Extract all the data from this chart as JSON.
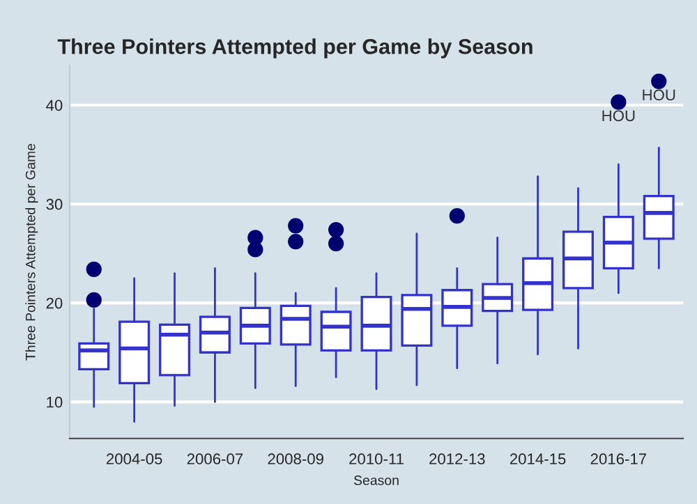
{
  "chart_data": {
    "type": "box",
    "title": "Three Pointers Attempted per Game by Season",
    "xlabel": "Season",
    "ylabel": "Three Pointers Attempted per Game",
    "categories": [
      null,
      "2004-05",
      null,
      "2006-07",
      null,
      "2008-09",
      null,
      "2010-11",
      null,
      "2012-13",
      null,
      "2014-15",
      null,
      "2016-17",
      null
    ],
    "color": "#3333cc",
    "boxes": [
      {
        "low": 9.5,
        "q1": 13.3,
        "median": 15.2,
        "q3": 15.9,
        "high": 19.4,
        "outliers": [
          20.3,
          23.4
        ]
      },
      {
        "low": 8.0,
        "q1": 11.9,
        "median": 15.4,
        "q3": 18.1,
        "high": 22.5
      },
      {
        "low": 9.6,
        "q1": 12.7,
        "median": 16.8,
        "q3": 17.8,
        "high": 23.0
      },
      {
        "low": 10.0,
        "q1": 15.0,
        "median": 17.0,
        "q3": 18.6,
        "high": 23.5
      },
      {
        "low": 11.4,
        "q1": 15.9,
        "median": 17.7,
        "q3": 19.5,
        "high": 23.0,
        "outliers": [
          25.4,
          26.6
        ]
      },
      {
        "low": 11.6,
        "q1": 15.8,
        "median": 18.4,
        "q3": 19.7,
        "high": 21.0,
        "outliers": [
          26.2,
          27.8
        ]
      },
      {
        "low": 12.5,
        "q1": 15.2,
        "median": 17.6,
        "q3": 19.1,
        "high": 21.5,
        "outliers": [
          26.0,
          27.4
        ]
      },
      {
        "low": 11.3,
        "q1": 15.2,
        "median": 17.7,
        "q3": 20.6,
        "high": 23.0
      },
      {
        "low": 11.7,
        "q1": 15.7,
        "median": 19.4,
        "q3": 20.8,
        "high": 27.0
      },
      {
        "low": 13.4,
        "q1": 17.7,
        "median": 19.6,
        "q3": 21.3,
        "high": 23.5,
        "outliers": [
          28.8
        ]
      },
      {
        "low": 13.9,
        "q1": 19.2,
        "median": 20.5,
        "q3": 21.9,
        "high": 26.6
      },
      {
        "low": 14.8,
        "q1": 19.3,
        "median": 22.0,
        "q3": 24.5,
        "high": 32.8
      },
      {
        "low": 15.4,
        "q1": 21.5,
        "median": 24.5,
        "q3": 27.2,
        "high": 31.6
      },
      {
        "low": 21.0,
        "q1": 23.5,
        "median": 26.1,
        "q3": 28.7,
        "high": 34.0,
        "outliers": [
          40.3
        ]
      },
      {
        "low": 23.5,
        "q1": 26.5,
        "median": 29.1,
        "q3": 30.8,
        "high": 35.7,
        "outliers": [
          42.4
        ]
      }
    ],
    "annotations": [
      "HOU",
      "HOU"
    ],
    "ylim": [
      6.3,
      44
    ],
    "yticks": [
      10,
      20,
      30,
      40
    ],
    "grid": "y"
  }
}
